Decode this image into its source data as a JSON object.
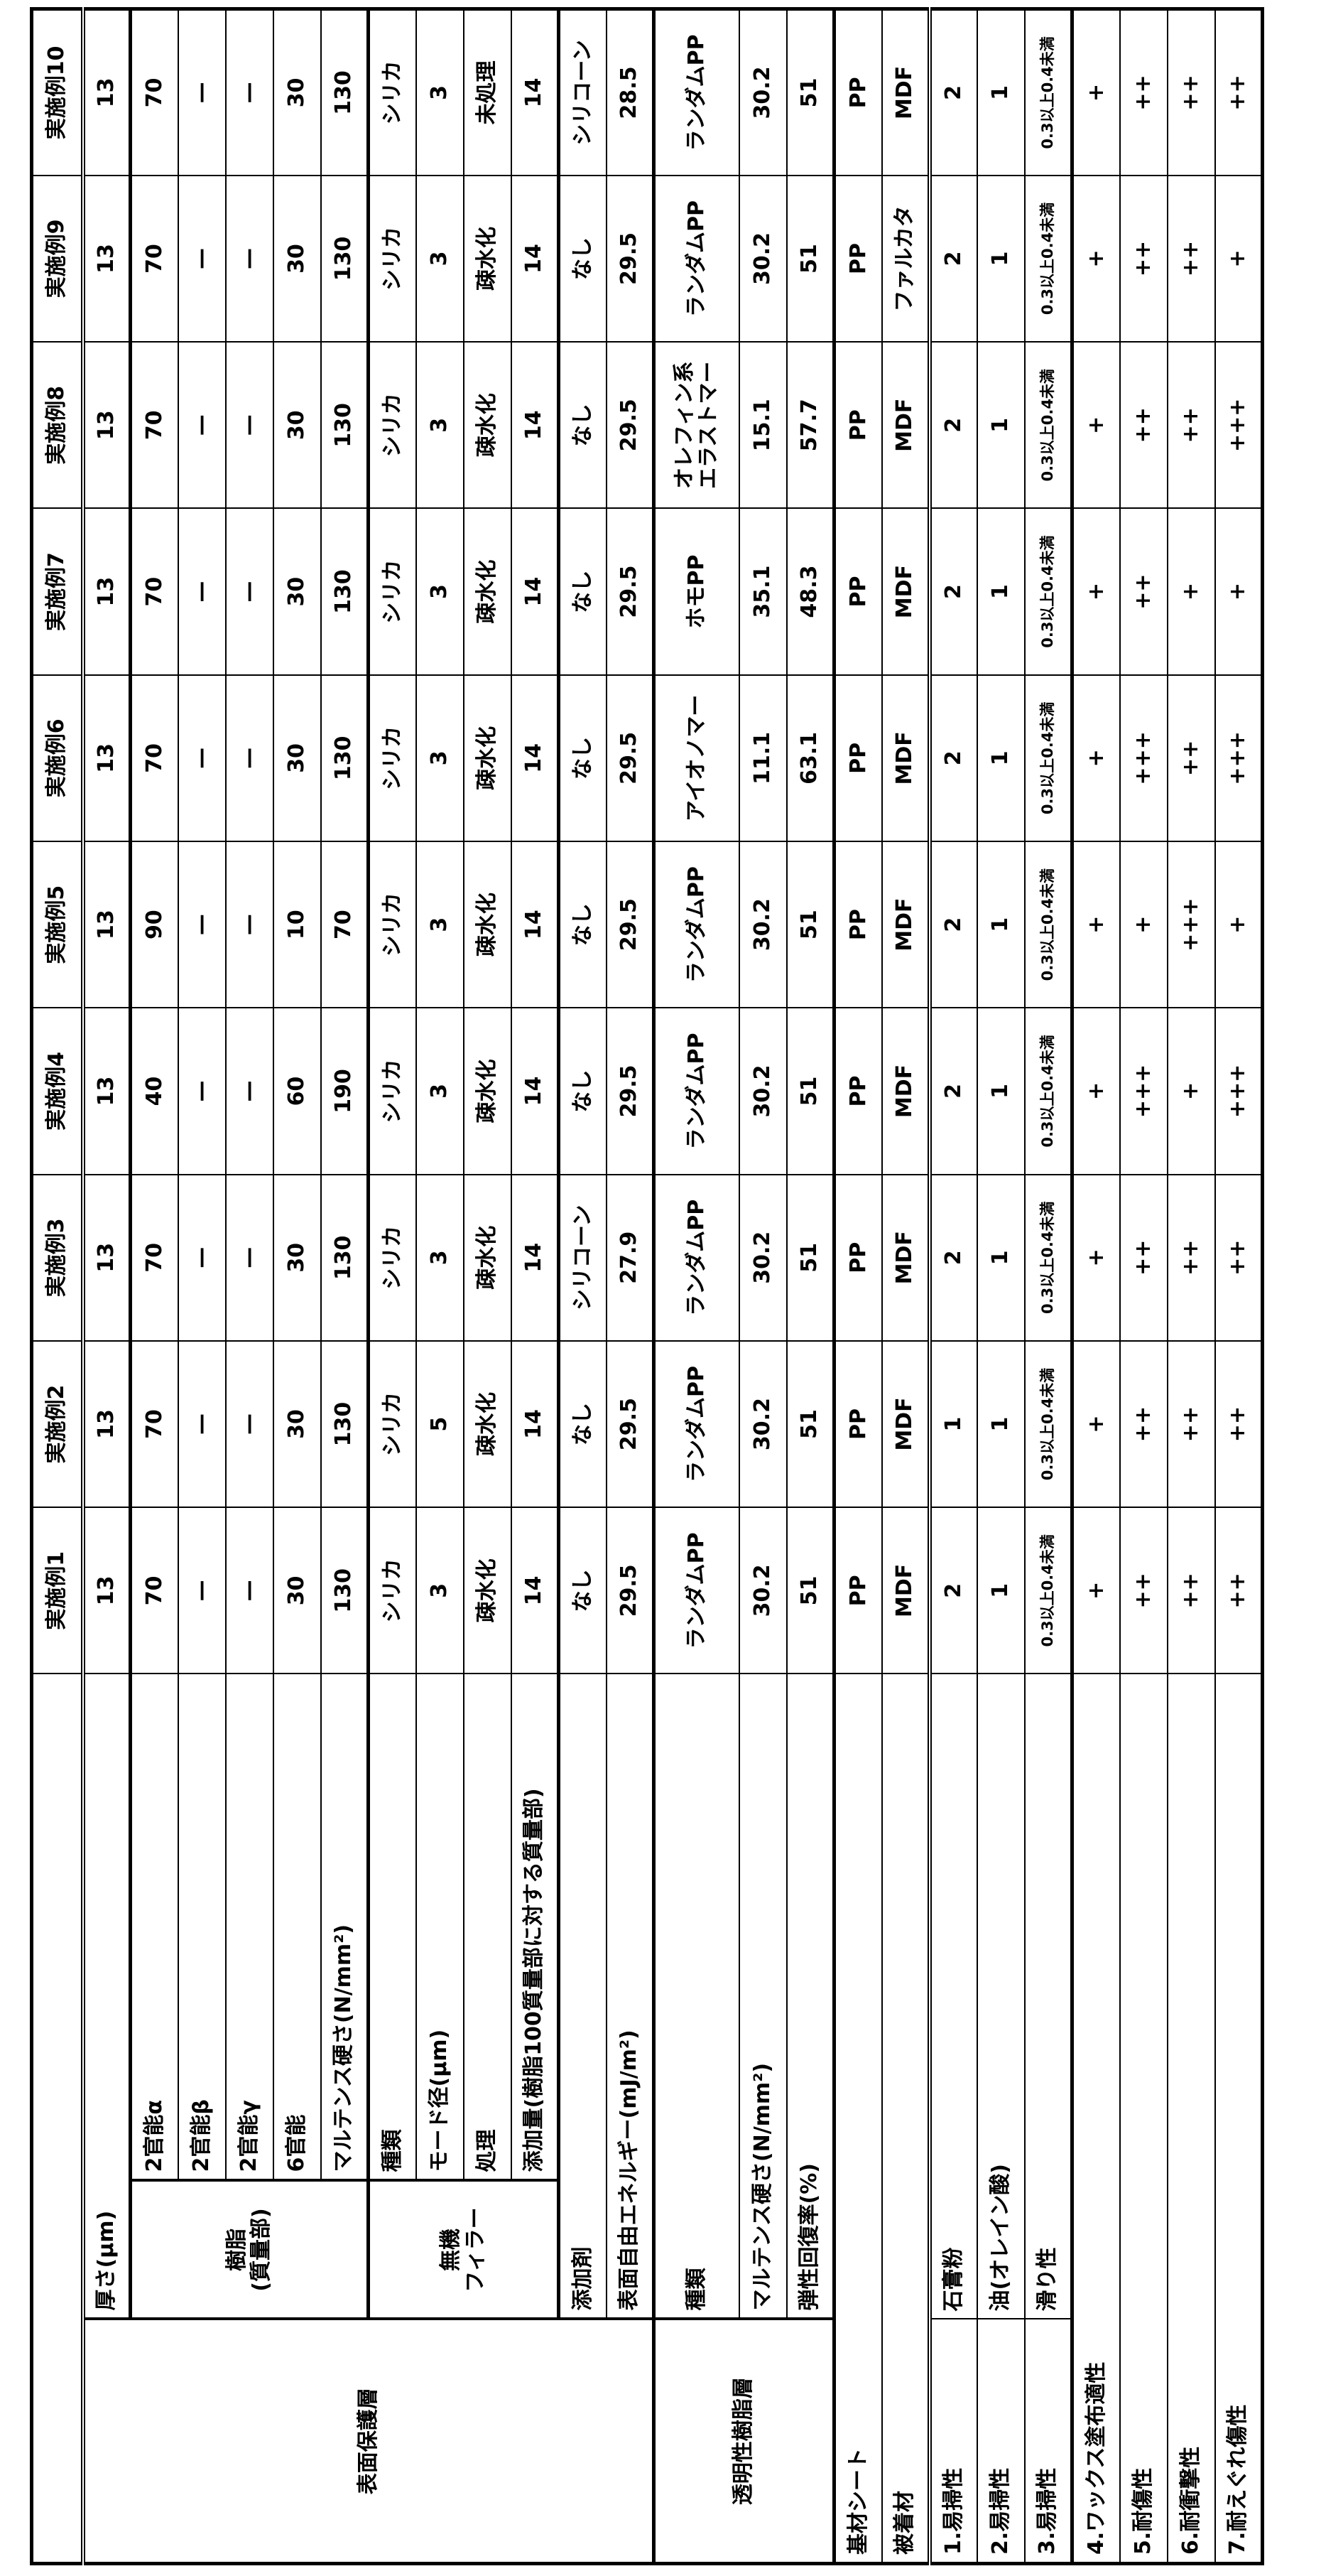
{
  "header": {
    "corner": "",
    "examples": [
      "実施例1",
      "実施例2",
      "実施例3",
      "実施例4",
      "実施例5",
      "実施例6",
      "実施例7",
      "実施例8",
      "実施例9",
      "実施例10"
    ]
  },
  "groups": {
    "surface_protective_layer": "表面保護層",
    "resin": "樹脂\n(質量部)",
    "inorganic_filler": "無機\nフィラー",
    "transparent_resin_layer": "透明性樹脂層",
    "ease_cleaning_1": "1.易掃性",
    "ease_cleaning_2": "2.易掃性",
    "ease_cleaning_3": "3.易掃性"
  },
  "rows": [
    {
      "label": "厚さ(μm)",
      "values": [
        "13",
        "13",
        "13",
        "13",
        "13",
        "13",
        "13",
        "13",
        "13",
        "13"
      ]
    },
    {
      "label": "2官能α",
      "values": [
        "70",
        "70",
        "70",
        "40",
        "90",
        "70",
        "70",
        "70",
        "70",
        "70"
      ]
    },
    {
      "label": "2官能β",
      "values": [
        "—",
        "—",
        "—",
        "—",
        "—",
        "—",
        "—",
        "—",
        "—",
        "—"
      ]
    },
    {
      "label": "2官能γ",
      "values": [
        "—",
        "—",
        "—",
        "—",
        "—",
        "—",
        "—",
        "—",
        "—",
        "—"
      ]
    },
    {
      "label": "6官能",
      "values": [
        "30",
        "30",
        "30",
        "60",
        "10",
        "30",
        "30",
        "30",
        "30",
        "30"
      ]
    },
    {
      "label": "マルテンス硬さ(N/mm²)",
      "values": [
        "130",
        "130",
        "130",
        "190",
        "70",
        "130",
        "130",
        "130",
        "130",
        "130"
      ]
    },
    {
      "label": "種類",
      "values": [
        "シリカ",
        "シリカ",
        "シリカ",
        "シリカ",
        "シリカ",
        "シリカ",
        "シリカ",
        "シリカ",
        "シリカ",
        "シリカ"
      ]
    },
    {
      "label": "モード径(μm)",
      "values": [
        "3",
        "5",
        "3",
        "3",
        "3",
        "3",
        "3",
        "3",
        "3",
        "3"
      ]
    },
    {
      "label": "処理",
      "values": [
        "疎水化",
        "疎水化",
        "疎水化",
        "疎水化",
        "疎水化",
        "疎水化",
        "疎水化",
        "疎水化",
        "疎水化",
        "未処理"
      ]
    },
    {
      "label": "添加量(樹脂100質量部に対する質量部)",
      "values": [
        "14",
        "14",
        "14",
        "14",
        "14",
        "14",
        "14",
        "14",
        "14",
        "14"
      ]
    },
    {
      "label": "添加剤",
      "values": [
        "なし",
        "なし",
        "シリコーン",
        "なし",
        "なし",
        "なし",
        "なし",
        "なし",
        "なし",
        "シリコーン"
      ]
    },
    {
      "label": "表面自由エネルギー(mJ/m²)",
      "values": [
        "29.5",
        "29.5",
        "27.9",
        "29.5",
        "29.5",
        "29.5",
        "29.5",
        "29.5",
        "29.5",
        "28.5"
      ]
    },
    {
      "label": "種類",
      "values": [
        "ランダムPP",
        "ランダムPP",
        "ランダムPP",
        "ランダムPP",
        "ランダムPP",
        "アイオノマー",
        "ホモPP",
        "オレフィン系\nエラストマー",
        "ランダムPP",
        "ランダムPP"
      ]
    },
    {
      "label": "マルテンス硬さ(N/mm²)",
      "values": [
        "30.2",
        "30.2",
        "30.2",
        "30.2",
        "30.2",
        "11.1",
        "35.1",
        "15.1",
        "30.2",
        "30.2"
      ]
    },
    {
      "label": "弾性回復率(%)",
      "values": [
        "51",
        "51",
        "51",
        "51",
        "51",
        "63.1",
        "48.3",
        "57.7",
        "51",
        "51"
      ]
    },
    {
      "label": "基材シート",
      "values": [
        "PP",
        "PP",
        "PP",
        "PP",
        "PP",
        "PP",
        "PP",
        "PP",
        "PP",
        "PP"
      ]
    },
    {
      "label": "被着材",
      "values": [
        "MDF",
        "MDF",
        "MDF",
        "MDF",
        "MDF",
        "MDF",
        "MDF",
        "MDF",
        "ファルカタ",
        "MDF"
      ]
    },
    {
      "label": "石膏粉",
      "values": [
        "2",
        "1",
        "2",
        "2",
        "2",
        "2",
        "2",
        "2",
        "2",
        "2"
      ]
    },
    {
      "label": "油(オレイン酸)",
      "values": [
        "1",
        "1",
        "1",
        "1",
        "1",
        "1",
        "1",
        "1",
        "1",
        "1"
      ]
    },
    {
      "label": "滑り性",
      "values": [
        "0.3以上0.4未満",
        "0.3以上0.4未満",
        "0.3以上0.4未満",
        "0.3以上0.4未満",
        "0.3以上0.4未満",
        "0.3以上0.4未満",
        "0.3以上0.4未満",
        "0.3以上0.4未満",
        "0.3以上0.4未満",
        "0.3以上0.4未満"
      ]
    },
    {
      "label": "4.ワックス塗布適性",
      "values": [
        "+",
        "+",
        "+",
        "+",
        "+",
        "+",
        "+",
        "+",
        "+",
        "+"
      ]
    },
    {
      "label": "5.耐傷性",
      "values": [
        "++",
        "++",
        "++",
        "+++",
        "+",
        "+++",
        "++",
        "++",
        "++",
        "++"
      ]
    },
    {
      "label": "6.耐衝撃性",
      "values": [
        "++",
        "++",
        "++",
        "+",
        "+++",
        "++",
        "+",
        "++",
        "++",
        "++"
      ]
    },
    {
      "label": "7.耐えぐれ傷性",
      "values": [
        "++",
        "++",
        "++",
        "+++",
        "+",
        "+++",
        "+",
        "+++",
        "+",
        "++"
      ]
    }
  ]
}
